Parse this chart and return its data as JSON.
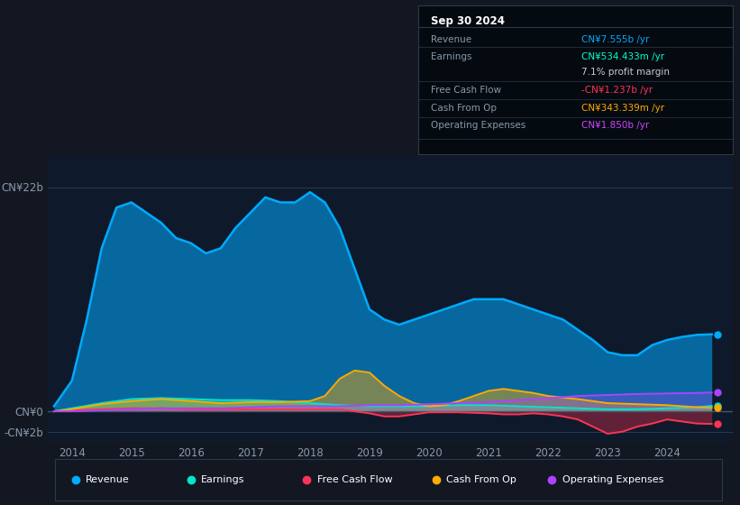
{
  "background_color": "#131722",
  "chart_bg_color": "#131722",
  "plot_bg_color": "#0e1a2b",
  "info_box_bg": "#050a10",
  "title_text": "Sep 30 2024",
  "info_rows": [
    {
      "label": "Revenue",
      "value": "CN¥7.555b /yr",
      "value_color": "#00aaff",
      "bold_part": "CN¥7.555b"
    },
    {
      "label": "Earnings",
      "value": "CN¥534.433m /yr",
      "value_color": "#00ffcc",
      "bold_part": "CN¥534.433m"
    },
    {
      "label": "",
      "value": "7.1% profit margin",
      "value_color": "#cccccc",
      "bold_part": "7.1%"
    },
    {
      "label": "Free Cash Flow",
      "value": "-CN¥1.237b /yr",
      "value_color": "#ff3355",
      "bold_part": "-CN¥1.237b"
    },
    {
      "label": "Cash From Op",
      "value": "CN¥343.339m /yr",
      "value_color": "#ffaa00",
      "bold_part": "CN¥343.339m"
    },
    {
      "label": "Operating Expenses",
      "value": "CN¥1.850b /yr",
      "value_color": "#cc44ff",
      "bold_part": "CN¥1.850b"
    }
  ],
  "y_label_top": "CN¥22b",
  "y_label_zero": "CN¥0",
  "y_label_neg": "-CN¥2b",
  "x_ticks": [
    2014,
    2015,
    2016,
    2017,
    2018,
    2019,
    2020,
    2021,
    2022,
    2023,
    2024
  ],
  "ylim": [
    -3.0,
    25
  ],
  "revenue_color": "#00aaff",
  "earnings_color": "#00e5cc",
  "fcf_color": "#ff3355",
  "cashfromop_color": "#ffaa00",
  "opex_color": "#aa44ff",
  "legend_items": [
    {
      "label": "Revenue",
      "color": "#00aaff"
    },
    {
      "label": "Earnings",
      "color": "#00e5cc"
    },
    {
      "label": "Free Cash Flow",
      "color": "#ff3355"
    },
    {
      "label": "Cash From Op",
      "color": "#ffaa00"
    },
    {
      "label": "Operating Expenses",
      "color": "#aa44ff"
    }
  ],
  "revenue_x": [
    2013.7,
    2014.0,
    2014.25,
    2014.5,
    2014.75,
    2015.0,
    2015.25,
    2015.5,
    2015.75,
    2016.0,
    2016.25,
    2016.5,
    2016.75,
    2017.0,
    2017.25,
    2017.5,
    2017.75,
    2018.0,
    2018.25,
    2018.5,
    2018.75,
    2019.0,
    2019.25,
    2019.5,
    2019.75,
    2020.0,
    2020.25,
    2020.5,
    2020.75,
    2021.0,
    2021.25,
    2021.5,
    2021.75,
    2022.0,
    2022.25,
    2022.5,
    2022.75,
    2023.0,
    2023.25,
    2023.5,
    2023.75,
    2024.0,
    2024.25,
    2024.5,
    2024.75
  ],
  "revenue_y": [
    0.5,
    3.0,
    9.0,
    16.0,
    20.0,
    20.5,
    19.5,
    18.5,
    17.0,
    16.5,
    15.5,
    16.0,
    18.0,
    19.5,
    21.0,
    20.5,
    20.5,
    21.5,
    20.5,
    18.0,
    14.0,
    10.0,
    9.0,
    8.5,
    9.0,
    9.5,
    10.0,
    10.5,
    11.0,
    11.0,
    11.0,
    10.5,
    10.0,
    9.5,
    9.0,
    8.0,
    7.0,
    5.8,
    5.5,
    5.5,
    6.5,
    7.0,
    7.3,
    7.5,
    7.555
  ],
  "earnings_x": [
    2013.7,
    2014.0,
    2014.5,
    2015.0,
    2015.5,
    2016.0,
    2016.5,
    2017.0,
    2017.5,
    2018.0,
    2018.5,
    2019.0,
    2019.5,
    2020.0,
    2020.5,
    2021.0,
    2021.5,
    2022.0,
    2022.5,
    2023.0,
    2023.5,
    2024.0,
    2024.5,
    2024.75
  ],
  "earnings_y": [
    0.0,
    0.3,
    0.8,
    1.2,
    1.3,
    1.2,
    1.1,
    1.1,
    1.0,
    0.8,
    0.6,
    0.5,
    0.5,
    0.5,
    0.6,
    0.6,
    0.5,
    0.4,
    0.3,
    0.2,
    0.2,
    0.3,
    0.4,
    0.534
  ],
  "fcf_x": [
    2013.7,
    2014.0,
    2014.5,
    2015.0,
    2015.5,
    2016.0,
    2016.5,
    2017.0,
    2017.5,
    2018.0,
    2018.5,
    2019.0,
    2019.25,
    2019.5,
    2019.75,
    2020.0,
    2020.5,
    2021.0,
    2021.25,
    2021.5,
    2021.75,
    2022.0,
    2022.25,
    2022.5,
    2022.75,
    2023.0,
    2023.25,
    2023.5,
    2023.75,
    2024.0,
    2024.25,
    2024.5,
    2024.75
  ],
  "fcf_y": [
    0.0,
    0.1,
    0.2,
    0.3,
    0.3,
    0.2,
    0.2,
    0.2,
    0.2,
    0.2,
    0.2,
    -0.2,
    -0.5,
    -0.5,
    -0.3,
    -0.1,
    -0.1,
    -0.2,
    -0.3,
    -0.3,
    -0.2,
    -0.3,
    -0.5,
    -0.8,
    -1.5,
    -2.2,
    -2.0,
    -1.5,
    -1.2,
    -0.8,
    -1.0,
    -1.2,
    -1.237
  ],
  "cashfromop_x": [
    2013.7,
    2014.0,
    2014.5,
    2015.0,
    2015.5,
    2016.0,
    2016.5,
    2017.0,
    2017.5,
    2018.0,
    2018.25,
    2018.5,
    2018.75,
    2019.0,
    2019.25,
    2019.5,
    2019.75,
    2020.0,
    2020.25,
    2020.5,
    2020.75,
    2021.0,
    2021.25,
    2021.5,
    2021.75,
    2022.0,
    2022.5,
    2023.0,
    2023.5,
    2024.0,
    2024.5,
    2024.75
  ],
  "cashfromop_y": [
    0.0,
    0.2,
    0.7,
    1.0,
    1.2,
    1.0,
    0.8,
    0.9,
    0.9,
    1.0,
    1.5,
    3.2,
    4.0,
    3.8,
    2.5,
    1.5,
    0.8,
    0.5,
    0.6,
    1.0,
    1.5,
    2.0,
    2.2,
    2.0,
    1.8,
    1.5,
    1.2,
    0.8,
    0.7,
    0.6,
    0.4,
    0.343
  ],
  "opex_x": [
    2013.7,
    2014.0,
    2014.5,
    2015.0,
    2015.5,
    2016.0,
    2016.5,
    2017.0,
    2017.5,
    2018.0,
    2018.5,
    2019.0,
    2019.5,
    2020.0,
    2020.5,
    2021.0,
    2021.5,
    2022.0,
    2022.5,
    2023.0,
    2023.5,
    2024.0,
    2024.5,
    2024.75
  ],
  "opex_y": [
    0.0,
    0.0,
    0.1,
    0.2,
    0.3,
    0.3,
    0.3,
    0.4,
    0.5,
    0.5,
    0.5,
    0.6,
    0.6,
    0.7,
    0.8,
    0.9,
    1.1,
    1.3,
    1.5,
    1.6,
    1.7,
    1.75,
    1.8,
    1.85
  ]
}
